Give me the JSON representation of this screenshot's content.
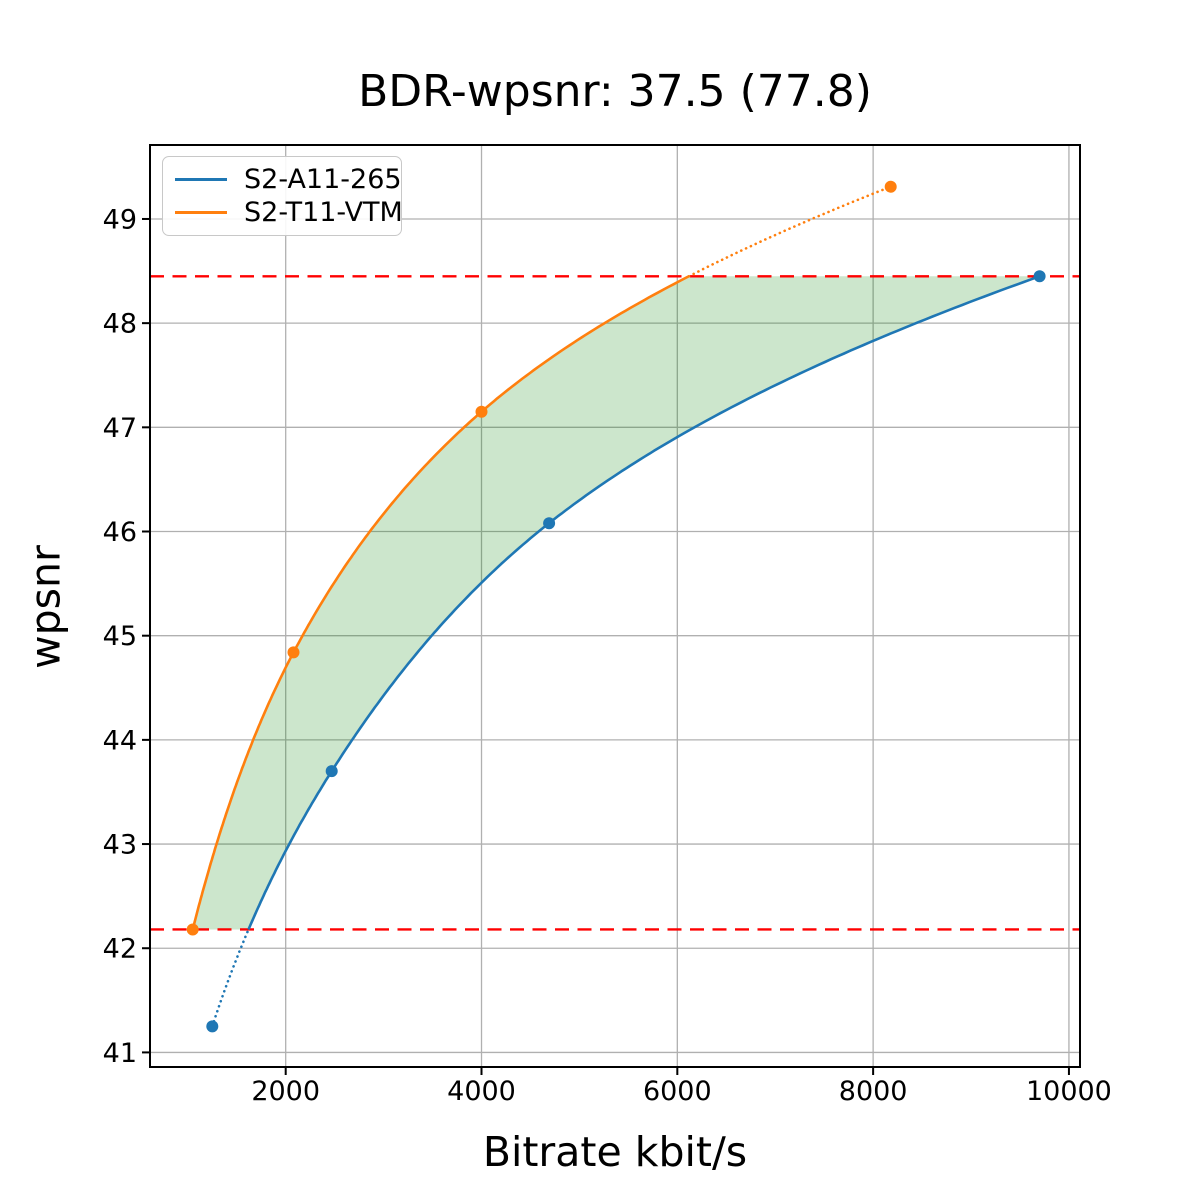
{
  "chart_data": {
    "type": "line",
    "title": "BDR-wpsnr: 37.5 (77.8)",
    "xlabel": "Bitrate kbit/s",
    "ylabel": "wpsnr",
    "xlim": [
      614,
      10113
    ],
    "ylim": [
      40.86,
      49.71
    ],
    "x_ticks": [
      2000,
      4000,
      6000,
      8000,
      10000
    ],
    "y_ticks": [
      41,
      42,
      43,
      44,
      45,
      46,
      47,
      48,
      49
    ],
    "grid": true,
    "grid_color": "#b0b0b0",
    "legend_position": "upper-left",
    "interpolation": "pchip-log-x",
    "series": [
      {
        "name": "S2-A11-265",
        "color": "#1f77b4",
        "marker": "circle",
        "points": [
          [
            1250,
            41.25
          ],
          [
            2470,
            43.7
          ],
          [
            4690,
            46.08
          ],
          [
            9700,
            48.45
          ]
        ],
        "clip_y": 42.18,
        "solid_side": "above"
      },
      {
        "name": "S2-T11-VTM",
        "color": "#ff7f0e",
        "marker": "circle",
        "points": [
          [
            1050,
            42.18
          ],
          [
            2080,
            44.84
          ],
          [
            4000,
            47.15
          ],
          [
            8180,
            49.31
          ]
        ],
        "clip_y": 48.45,
        "solid_side": "below"
      }
    ],
    "hlines": [
      {
        "y": 48.45,
        "color": "#ff0000",
        "style": "dashed"
      },
      {
        "y": 42.18,
        "color": "#ff0000",
        "style": "dashed"
      }
    ],
    "fill_between": {
      "color": "#008000",
      "alpha": 0.2,
      "between": [
        "S2-T11-VTM",
        "S2-A11-265"
      ],
      "y_range": [
        42.18,
        48.45
      ]
    }
  }
}
